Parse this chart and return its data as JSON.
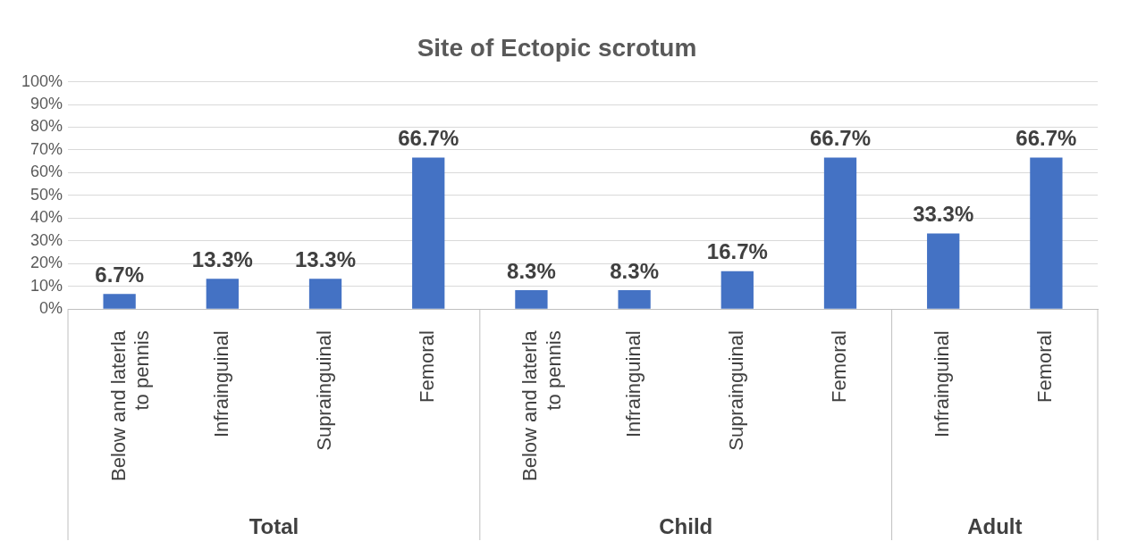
{
  "chart_data": {
    "type": "bar",
    "title": "Site of Ectopic scrotum",
    "categories": [
      "Below and laterla to pennis",
      "Infrainguinal",
      "Suprainguinal",
      "Femoral",
      "Below and laterla to pennis",
      "Infrainguinal",
      "Suprainguinal",
      "Femoral",
      "Infrainguinal",
      "Femoral"
    ],
    "values": [
      6.7,
      13.3,
      13.3,
      66.7,
      8.3,
      8.3,
      16.7,
      66.7,
      33.3,
      66.7
    ],
    "value_labels": [
      "6.7%",
      "13.3%",
      "13.3%",
      "66.7%",
      "8.3%",
      "8.3%",
      "16.7%",
      "66.7%",
      "33.3%",
      "66.7%"
    ],
    "color": "#4472c4",
    "ylim": [
      0,
      100
    ],
    "yticks": [
      {
        "value": 0,
        "label": "0%"
      },
      {
        "value": 10,
        "label": "10%"
      },
      {
        "value": 20,
        "label": "20%"
      },
      {
        "value": 30,
        "label": "30%"
      },
      {
        "value": 40,
        "label": "40%"
      },
      {
        "value": 50,
        "label": "50%"
      },
      {
        "value": 60,
        "label": "60%"
      },
      {
        "value": 70,
        "label": "70%"
      },
      {
        "value": 80,
        "label": "80%"
      },
      {
        "value": 90,
        "label": "90%"
      },
      {
        "value": 100,
        "label": "100%"
      }
    ],
    "grid": "y",
    "annotations": [
      "Total",
      "Child",
      "Adult"
    ]
  }
}
